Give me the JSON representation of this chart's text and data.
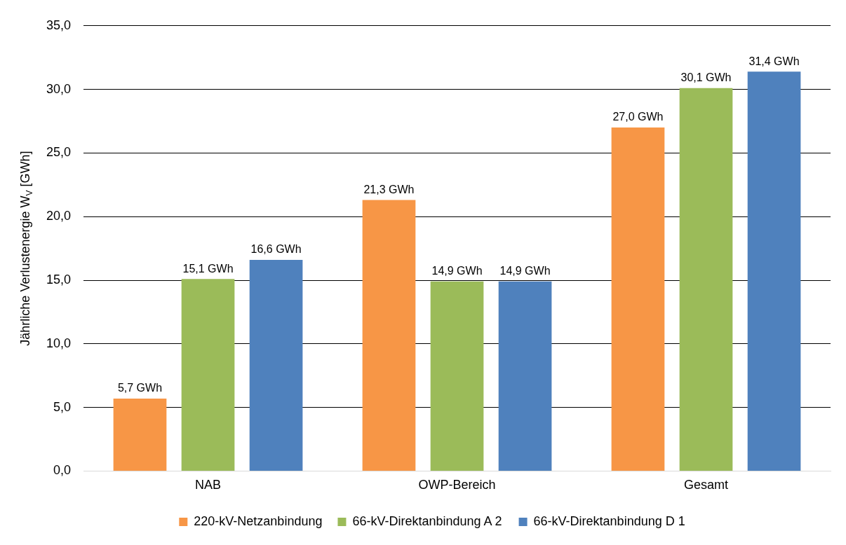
{
  "chart_data": {
    "type": "bar",
    "ylabel": "Jährliche Verlustenergie W$_{V}$ [GWh]",
    "categories": [
      "NAB",
      "OWP-Bereich",
      "Gesamt"
    ],
    "series": [
      {
        "name": "220-kV-Netzanbindung",
        "color": "#f79646",
        "values": [
          5.7,
          21.3,
          27.0
        ],
        "value_labels": [
          "5,7 GWh",
          "21,3 GWh",
          "27,0 GWh"
        ]
      },
      {
        "name": "66-kV-Direktanbindung A 2",
        "color": "#9bbb59",
        "values": [
          15.1,
          14.9,
          30.1
        ],
        "value_labels": [
          "15,1 GWh",
          "14,9 GWh",
          "30,1 GWh"
        ]
      },
      {
        "name": "66-kV-Direktanbindung D 1",
        "color": "#4f81bd",
        "values": [
          16.6,
          14.9,
          31.4
        ],
        "value_labels": [
          "16,6 GWh",
          "14,9 GWh",
          "31,4 GWh"
        ]
      }
    ],
    "ylim": [
      0,
      35
    ],
    "yticks": [
      {
        "value": 0,
        "label": "0,0"
      },
      {
        "value": 5,
        "label": "5,0"
      },
      {
        "value": 10,
        "label": "10,0"
      },
      {
        "value": 15,
        "label": "15,0"
      },
      {
        "value": 20,
        "label": "20,0"
      },
      {
        "value": 25,
        "label": "25,0"
      },
      {
        "value": 30,
        "label": "30,0"
      },
      {
        "value": 35,
        "label": "35,0"
      }
    ],
    "grid": "y",
    "legend": "bottom"
  }
}
